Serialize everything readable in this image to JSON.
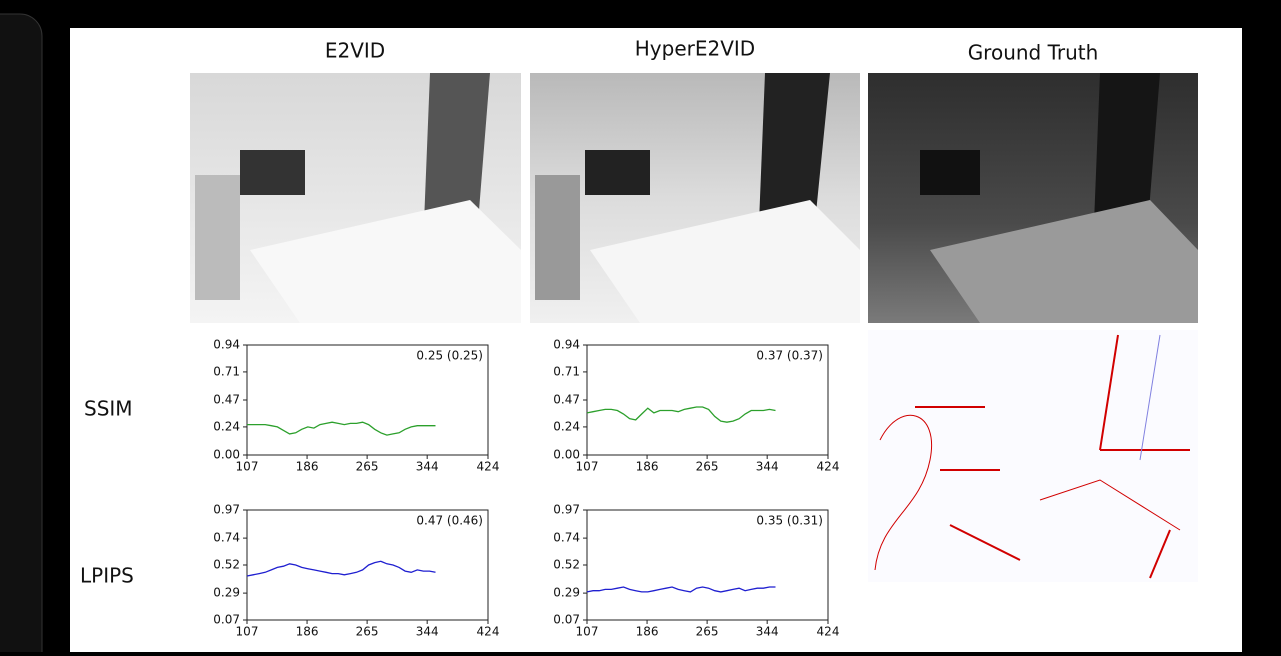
{
  "columns": [
    "E2VID",
    "HyperE2VID",
    "Ground Truth"
  ],
  "rows": [
    "SSIM",
    "LPIPS"
  ],
  "chart_data": [
    {
      "type": "line",
      "annotation": "0.25 (0.25)",
      "x": [
        107,
        115,
        123,
        131,
        139,
        147,
        155,
        163,
        171,
        179,
        187,
        195,
        203,
        211,
        219,
        227,
        235,
        243,
        251,
        259,
        267,
        275,
        283,
        291,
        299,
        307,
        315,
        323,
        331,
        339,
        347,
        355
      ],
      "xlim": [
        107,
        424
      ],
      "xticks": [
        107,
        186,
        265,
        344,
        424
      ],
      "ylim": [
        0,
        0.94
      ],
      "yticks": [
        {
          "value": 0,
          "label": "0.00"
        },
        0.24,
        0.47,
        0.71,
        0.94
      ],
      "series": [
        {
          "color": "#2ca02c",
          "values": [
            0.26,
            0.26,
            0.26,
            0.26,
            0.25,
            0.24,
            0.21,
            0.18,
            0.19,
            0.22,
            0.24,
            0.23,
            0.26,
            0.27,
            0.28,
            0.27,
            0.26,
            0.27,
            0.27,
            0.28,
            0.26,
            0.22,
            0.19,
            0.17,
            0.18,
            0.19,
            0.22,
            0.24,
            0.25,
            0.25,
            0.25,
            0.25
          ]
        }
      ]
    },
    {
      "type": "line",
      "annotation": "0.37 (0.37)",
      "x": [
        107,
        115,
        123,
        131,
        139,
        147,
        155,
        163,
        171,
        179,
        187,
        195,
        203,
        211,
        219,
        227,
        235,
        243,
        251,
        259,
        267,
        275,
        283,
        291,
        299,
        307,
        315,
        323,
        331,
        339,
        347,
        355
      ],
      "xlim": [
        107,
        424
      ],
      "xticks": [
        107,
        186,
        265,
        344,
        424
      ],
      "ylim": [
        0,
        0.94
      ],
      "yticks": [
        {
          "value": 0,
          "label": "0.00"
        },
        0.24,
        0.47,
        0.71,
        0.94
      ],
      "series": [
        {
          "color": "#2ca02c",
          "values": [
            0.36,
            0.37,
            0.38,
            0.39,
            0.39,
            0.38,
            0.35,
            0.31,
            0.3,
            0.35,
            0.4,
            0.36,
            0.38,
            0.38,
            0.38,
            0.37,
            0.39,
            0.4,
            0.41,
            0.41,
            0.39,
            0.33,
            0.29,
            0.28,
            0.29,
            0.31,
            0.35,
            0.38,
            0.38,
            0.38,
            0.39,
            0.38
          ]
        }
      ]
    },
    {
      "type": "line",
      "annotation": "0.47 (0.46)",
      "x": [
        107,
        115,
        123,
        131,
        139,
        147,
        155,
        163,
        171,
        179,
        187,
        195,
        203,
        211,
        219,
        227,
        235,
        243,
        251,
        259,
        267,
        275,
        283,
        291,
        299,
        307,
        315,
        323,
        331,
        339,
        347,
        355
      ],
      "xlim": [
        107,
        424
      ],
      "xticks": [
        107,
        186,
        265,
        344,
        424
      ],
      "ylim": [
        0.07,
        0.97
      ],
      "yticks": [
        0.07,
        0.29,
        0.52,
        0.74,
        0.97
      ],
      "series": [
        {
          "color": "#1f1fd0",
          "values": [
            0.43,
            0.44,
            0.45,
            0.46,
            0.48,
            0.5,
            0.51,
            0.53,
            0.52,
            0.5,
            0.49,
            0.48,
            0.47,
            0.46,
            0.45,
            0.45,
            0.44,
            0.45,
            0.46,
            0.48,
            0.52,
            0.54,
            0.55,
            0.53,
            0.52,
            0.5,
            0.47,
            0.46,
            0.48,
            0.47,
            0.47,
            0.46
          ]
        }
      ]
    },
    {
      "type": "line",
      "annotation": "0.35 (0.31)",
      "x": [
        107,
        115,
        123,
        131,
        139,
        147,
        155,
        163,
        171,
        179,
        187,
        195,
        203,
        211,
        219,
        227,
        235,
        243,
        251,
        259,
        267,
        275,
        283,
        291,
        299,
        307,
        315,
        323,
        331,
        339,
        347,
        355
      ],
      "xlim": [
        107,
        424
      ],
      "xticks": [
        107,
        186,
        265,
        344,
        424
      ],
      "ylim": [
        0.07,
        0.97
      ],
      "yticks": [
        0.07,
        0.29,
        0.52,
        0.74,
        0.97
      ],
      "series": [
        {
          "color": "#1f1fd0",
          "values": [
            0.3,
            0.31,
            0.31,
            0.32,
            0.32,
            0.33,
            0.34,
            0.32,
            0.31,
            0.3,
            0.3,
            0.31,
            0.32,
            0.33,
            0.34,
            0.32,
            0.31,
            0.3,
            0.33,
            0.34,
            0.33,
            0.31,
            0.3,
            0.31,
            0.32,
            0.33,
            0.31,
            0.32,
            0.33,
            0.33,
            0.34,
            0.34
          ]
        }
      ]
    }
  ]
}
